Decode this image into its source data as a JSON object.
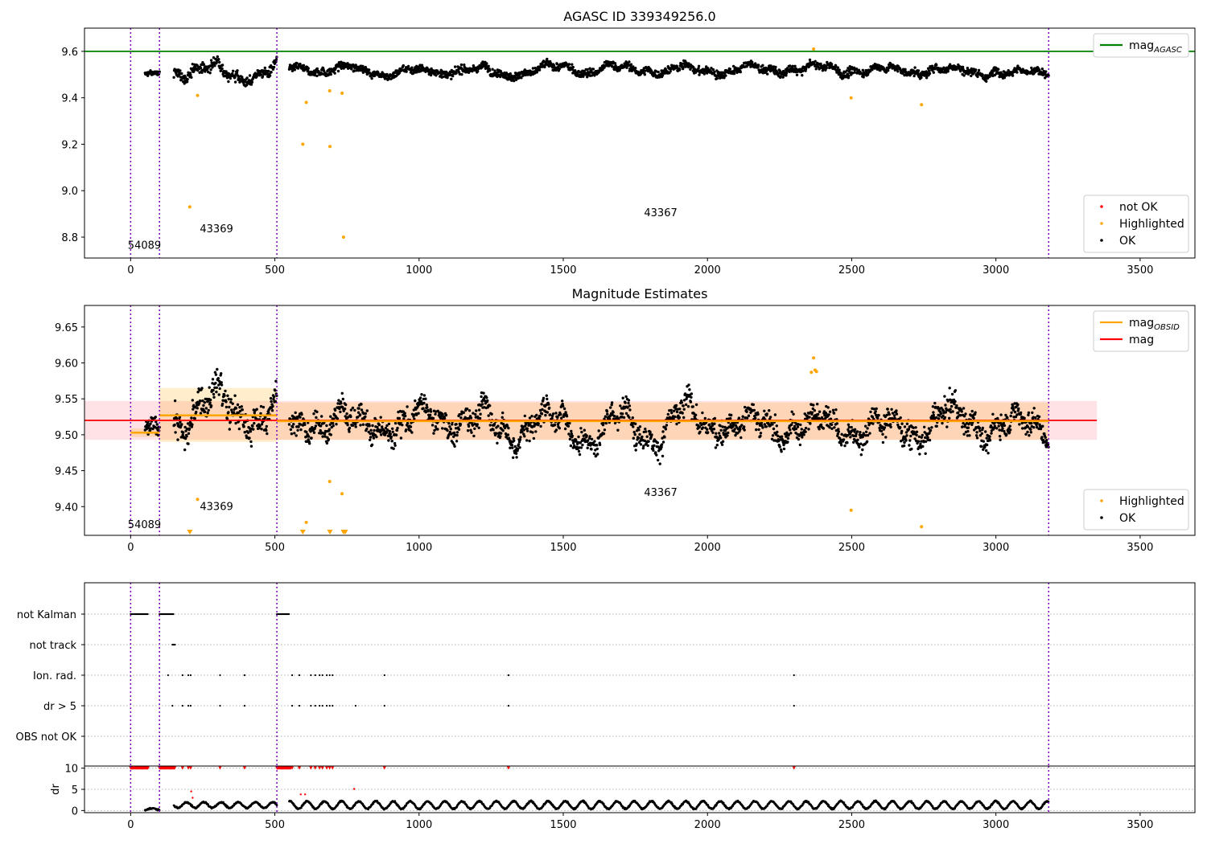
{
  "chart_data": [
    {
      "type": "scatter",
      "title": "AGASC ID 339349256.0",
      "xlim": [
        -160,
        3690
      ],
      "ylim": [
        8.71,
        9.7
      ],
      "xticks": [
        0,
        500,
        1000,
        1500,
        2000,
        2500,
        3000,
        3500
      ],
      "yticks": [
        8.8,
        9.0,
        9.2,
        9.4,
        9.6
      ],
      "ytick_decimals": 1,
      "hlines": [
        {
          "y": 9.6,
          "color": "#008000"
        }
      ],
      "vlines_x": [
        0,
        100,
        507,
        3183
      ],
      "annotations": [
        {
          "text": "54089",
          "x": -10,
          "y": 8.75
        },
        {
          "text": "43369",
          "x": 240,
          "y": 8.82
        },
        {
          "text": "43367",
          "x": 1780,
          "y": 8.89
        }
      ],
      "highlighted_points": [
        [
          205,
          8.93
        ],
        [
          232,
          9.41
        ],
        [
          597,
          9.2
        ],
        [
          609,
          9.38
        ],
        [
          690,
          9.43
        ],
        [
          691,
          9.19
        ],
        [
          733,
          9.42
        ],
        [
          738,
          8.8
        ],
        [
          2368,
          9.61
        ],
        [
          2498,
          9.4
        ],
        [
          2742,
          9.37
        ]
      ],
      "segments": [
        {
          "x": [
            50,
            100
          ],
          "mean": 9.5,
          "amp": 0.01,
          "noise": 0.008
        },
        {
          "x": [
            150,
            507
          ],
          "mean": 9.52,
          "amp": 0.05,
          "noise": 0.015
        },
        {
          "x": [
            550,
            3183
          ],
          "mean": 9.52,
          "amp": 0.03,
          "noise": 0.012
        }
      ],
      "legends": [
        {
          "position": "top-right",
          "entries": [
            {
              "label": "mag",
              "sub": "AGASC",
              "kind": "line",
              "color": "#008000"
            }
          ]
        },
        {
          "position": "bottom-right",
          "entries": [
            {
              "label": "not OK",
              "kind": "dot",
              "color": "#ff0000"
            },
            {
              "label": "Highlighted",
              "kind": "dot",
              "color": "#ffa500"
            },
            {
              "label": "OK",
              "kind": "dot",
              "color": "#000000"
            }
          ]
        }
      ]
    },
    {
      "type": "scatter",
      "title": "Magnitude Estimates",
      "xlim": [
        -160,
        3690
      ],
      "ylim": [
        9.36,
        9.68
      ],
      "xticks": [
        0,
        500,
        1000,
        1500,
        2000,
        2500,
        3000,
        3500
      ],
      "yticks": [
        9.4,
        9.45,
        9.5,
        9.55,
        9.6,
        9.65
      ],
      "ytick_decimals": 2,
      "mag": 9.52,
      "mag_band": [
        9.493,
        9.547
      ],
      "mag_obsid": [
        {
          "x": [
            0,
            100
          ],
          "mag": 9.503,
          "band": [
            9.497,
            9.509
          ]
        },
        {
          "x": [
            100,
            507
          ],
          "mag": 9.527,
          "band": [
            9.49,
            9.565
          ]
        },
        {
          "x": [
            507,
            3183
          ],
          "mag": 9.519,
          "band": [
            9.493,
            9.545
          ]
        }
      ],
      "vlines_x": [
        0,
        100,
        507,
        3183
      ],
      "annotations": [
        {
          "text": "54089",
          "x": -10,
          "y": 9.37
        },
        {
          "text": "43369",
          "x": 240,
          "y": 9.395
        },
        {
          "text": "43367",
          "x": 1780,
          "y": 9.415
        }
      ],
      "highlighted_points": [
        [
          232,
          9.41
        ],
        [
          609,
          9.378
        ],
        [
          690,
          9.435
        ],
        [
          733,
          9.418
        ],
        [
          2360,
          9.587
        ],
        [
          2368,
          9.607
        ],
        [
          2373,
          9.59
        ],
        [
          2378,
          9.588
        ],
        [
          2498,
          9.395
        ],
        [
          2742,
          9.372
        ]
      ],
      "offscale_markers_x": [
        205,
        597,
        691,
        738,
        744
      ],
      "segments": [
        {
          "x": [
            50,
            100
          ],
          "mean": 9.505,
          "amp": 0.012,
          "noise": 0.008
        },
        {
          "x": [
            150,
            507
          ],
          "mean": 9.53,
          "amp": 0.05,
          "noise": 0.014
        },
        {
          "x": [
            550,
            3183
          ],
          "mean": 9.52,
          "amp": 0.035,
          "noise": 0.012
        }
      ],
      "legends": [
        {
          "position": "top-right",
          "entries": [
            {
              "label": "mag",
              "sub": "OBSID",
              "kind": "line",
              "color": "#ffa500"
            },
            {
              "label": "mag",
              "sub": "",
              "kind": "line",
              "color": "#ff0000"
            }
          ]
        },
        {
          "position": "bottom-right",
          "entries": [
            {
              "label": "Highlighted",
              "kind": "dot",
              "color": "#ffa500"
            },
            {
              "label": "OK",
              "kind": "dot",
              "color": "#000000"
            }
          ]
        }
      ]
    },
    {
      "type": "scatter",
      "title": "",
      "categories": [
        "not Kalman",
        "not track",
        "Ion. rad.",
        "dr > 5",
        "OBS not OK"
      ],
      "vlines_x": [
        0,
        100,
        507,
        3183
      ],
      "flag_points": {
        "not Kalman": [
          [
            0,
            60
          ],
          [
            100,
            150
          ],
          [
            507,
            550
          ]
        ],
        "not track": [
          [
            145,
            155
          ]
        ],
        "Ion. rad.": [
          130,
          180,
          200,
          208,
          310,
          395,
          560,
          585,
          625,
          640,
          655,
          665,
          680,
          690,
          700,
          880,
          1310,
          2300
        ],
        "dr > 5": [
          145,
          180,
          200,
          208,
          310,
          395,
          560,
          585,
          625,
          640,
          655,
          665,
          680,
          690,
          700,
          780,
          880,
          1310,
          2300
        ],
        "OBS not OK": []
      }
    },
    {
      "type": "scatter",
      "title": "",
      "xlim": [
        -160,
        3690
      ],
      "ylim": [
        -0.5,
        10.5
      ],
      "xticks": [
        0,
        500,
        1000,
        1500,
        2000,
        2500,
        3000,
        3500
      ],
      "yticks": [
        0,
        5,
        10
      ],
      "ytick_decimals": 0,
      "ylabel": "dr",
      "vlines_x": [
        0,
        100,
        507,
        3183
      ],
      "clipped_points": [
        [
          [
            0,
            60
          ]
        ],
        [
          [
            100,
            155
          ]
        ],
        [
          [
            507,
            555
          ]
        ]
      ],
      "clipped_singles": [
        180,
        200,
        208,
        310,
        395,
        560,
        585,
        625,
        640,
        655,
        665,
        680,
        690,
        700,
        880,
        1310,
        2300
      ],
      "notok_points": [
        [
          210,
          4.5
        ],
        [
          590,
          3.8
        ],
        [
          605,
          3.8
        ],
        [
          775,
          5.1
        ],
        [
          215,
          3.0
        ]
      ],
      "segments": [
        {
          "x": [
            50,
            100
          ],
          "mean": 0.3,
          "amp": 0.2
        },
        {
          "x": [
            150,
            507
          ],
          "mean": 1.3,
          "amp": 0.7
        },
        {
          "x": [
            550,
            3183
          ],
          "mean": 1.3,
          "amp": 0.9
        }
      ]
    }
  ]
}
